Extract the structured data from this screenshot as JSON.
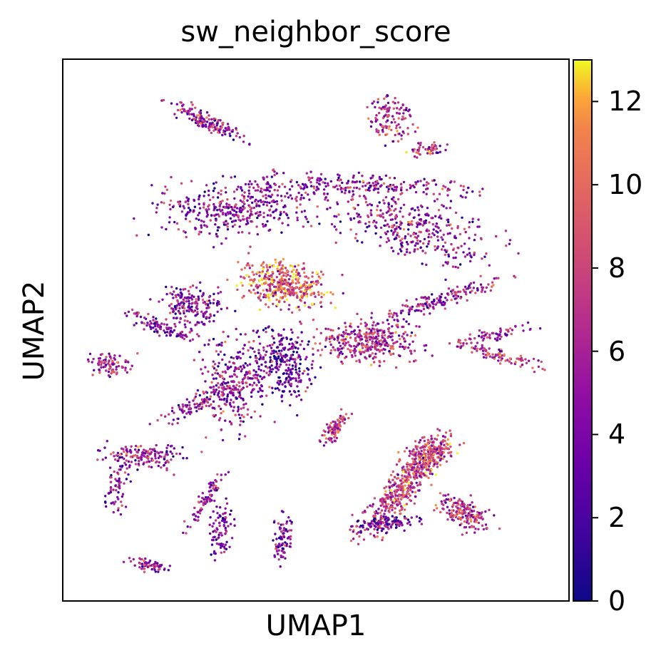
{
  "chart_data": {
    "type": "scatter",
    "title": "sw_neighbor_score",
    "xlabel": "UMAP1",
    "ylabel": "UMAP2",
    "x_ticks": [],
    "y_ticks": [],
    "colorbar": {
      "colormap": "plasma",
      "range": [
        0,
        13
      ],
      "ticks": [
        0,
        2,
        4,
        6,
        8,
        10,
        12
      ],
      "tick_labels": [
        "0",
        "2",
        "4",
        "6",
        "8",
        "10",
        "12"
      ]
    },
    "grid": false,
    "legend": "none",
    "colors": {
      "plasma_low": "#0d0887",
      "plasma_mid": "#cc4778",
      "plasma_high": "#f0f921",
      "frame": "#000000"
    }
  }
}
